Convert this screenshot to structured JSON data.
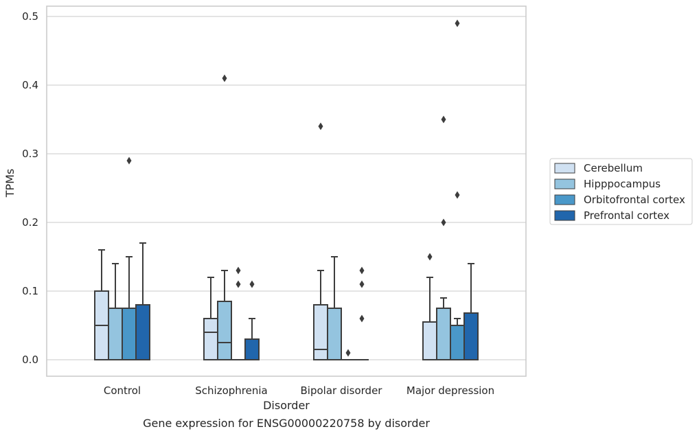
{
  "chart_data": {
    "type": "box",
    "title": "Gene expression for ENSG00000220758 by disorder",
    "xlabel": "Disorder",
    "ylabel": "TPMs",
    "ylim": [
      -0.023,
      0.515
    ],
    "yticks": [
      0.0,
      0.1,
      0.2,
      0.3,
      0.4,
      0.5
    ],
    "ytick_labels": [
      "0.0",
      "0.1",
      "0.2",
      "0.3",
      "0.4",
      "0.5"
    ],
    "grid": true,
    "legend_position": "right",
    "categories": [
      "Control",
      "Schizophrenia",
      "Bipolar disorder",
      "Major depression"
    ],
    "series": [
      {
        "name": "Cerebellum",
        "color": "#d0e1f2",
        "boxes": [
          {
            "q1": 0.0,
            "median": 0.05,
            "q3": 0.1,
            "whisker_low": 0.0,
            "whisker_high": 0.16,
            "outliers": []
          },
          {
            "q1": 0.0,
            "median": 0.04,
            "q3": 0.06,
            "whisker_low": 0.0,
            "whisker_high": 0.12,
            "outliers": []
          },
          {
            "q1": 0.0,
            "median": 0.015,
            "q3": 0.08,
            "whisker_low": 0.0,
            "whisker_high": 0.13,
            "outliers": [
              0.34
            ]
          },
          {
            "q1": 0.0,
            "median": 0.0,
            "q3": 0.055,
            "whisker_low": 0.0,
            "whisker_high": 0.12,
            "outliers": [
              0.15
            ]
          }
        ]
      },
      {
        "name": "Hipppocampus",
        "color": "#94c4df",
        "boxes": [
          {
            "q1": 0.0,
            "median": 0.0,
            "q3": 0.075,
            "whisker_low": 0.0,
            "whisker_high": 0.14,
            "outliers": []
          },
          {
            "q1": 0.0,
            "median": 0.025,
            "q3": 0.085,
            "whisker_low": 0.0,
            "whisker_high": 0.13,
            "outliers": [
              0.41
            ]
          },
          {
            "q1": 0.0,
            "median": 0.0,
            "q3": 0.075,
            "whisker_low": 0.0,
            "whisker_high": 0.15,
            "outliers": []
          },
          {
            "q1": 0.0,
            "median": 0.0,
            "q3": 0.075,
            "whisker_low": 0.0,
            "whisker_high": 0.09,
            "outliers": [
              0.2,
              0.35
            ]
          }
        ]
      },
      {
        "name": "Orbitofrontal cortex",
        "color": "#4a98c9",
        "boxes": [
          {
            "q1": 0.0,
            "median": 0.0,
            "q3": 0.075,
            "whisker_low": 0.0,
            "whisker_high": 0.15,
            "outliers": [
              0.29
            ]
          },
          {
            "q1": 0.0,
            "median": 0.0,
            "q3": 0.0,
            "whisker_low": 0.0,
            "whisker_high": 0.0,
            "outliers": [
              0.11,
              0.13
            ]
          },
          {
            "q1": 0.0,
            "median": 0.0,
            "q3": 0.0,
            "whisker_low": 0.0,
            "whisker_high": 0.0,
            "outliers": [
              0.01
            ]
          },
          {
            "q1": 0.0,
            "median": 0.0,
            "q3": 0.05,
            "whisker_low": 0.0,
            "whisker_high": 0.06,
            "outliers": [
              0.24,
              0.49
            ]
          }
        ]
      },
      {
        "name": "Prefrontal cortex",
        "color": "#2166ac",
        "boxes": [
          {
            "q1": 0.0,
            "median": 0.0,
            "q3": 0.08,
            "whisker_low": 0.0,
            "whisker_high": 0.17,
            "outliers": []
          },
          {
            "q1": 0.0,
            "median": 0.0,
            "q3": 0.03,
            "whisker_low": 0.0,
            "whisker_high": 0.06,
            "outliers": [
              0.11
            ]
          },
          {
            "q1": 0.0,
            "median": 0.0,
            "q3": 0.0,
            "whisker_low": 0.0,
            "whisker_high": 0.0,
            "outliers": [
              0.06,
              0.11,
              0.13
            ]
          },
          {
            "q1": 0.0,
            "median": 0.0,
            "q3": 0.068,
            "whisker_low": 0.0,
            "whisker_high": 0.14,
            "outliers": []
          }
        ]
      }
    ],
    "colors": {
      "grid": "#d3d3d3",
      "frame": "#cccccc",
      "box_edge": "#3d3d3d",
      "text": "#262626"
    }
  }
}
